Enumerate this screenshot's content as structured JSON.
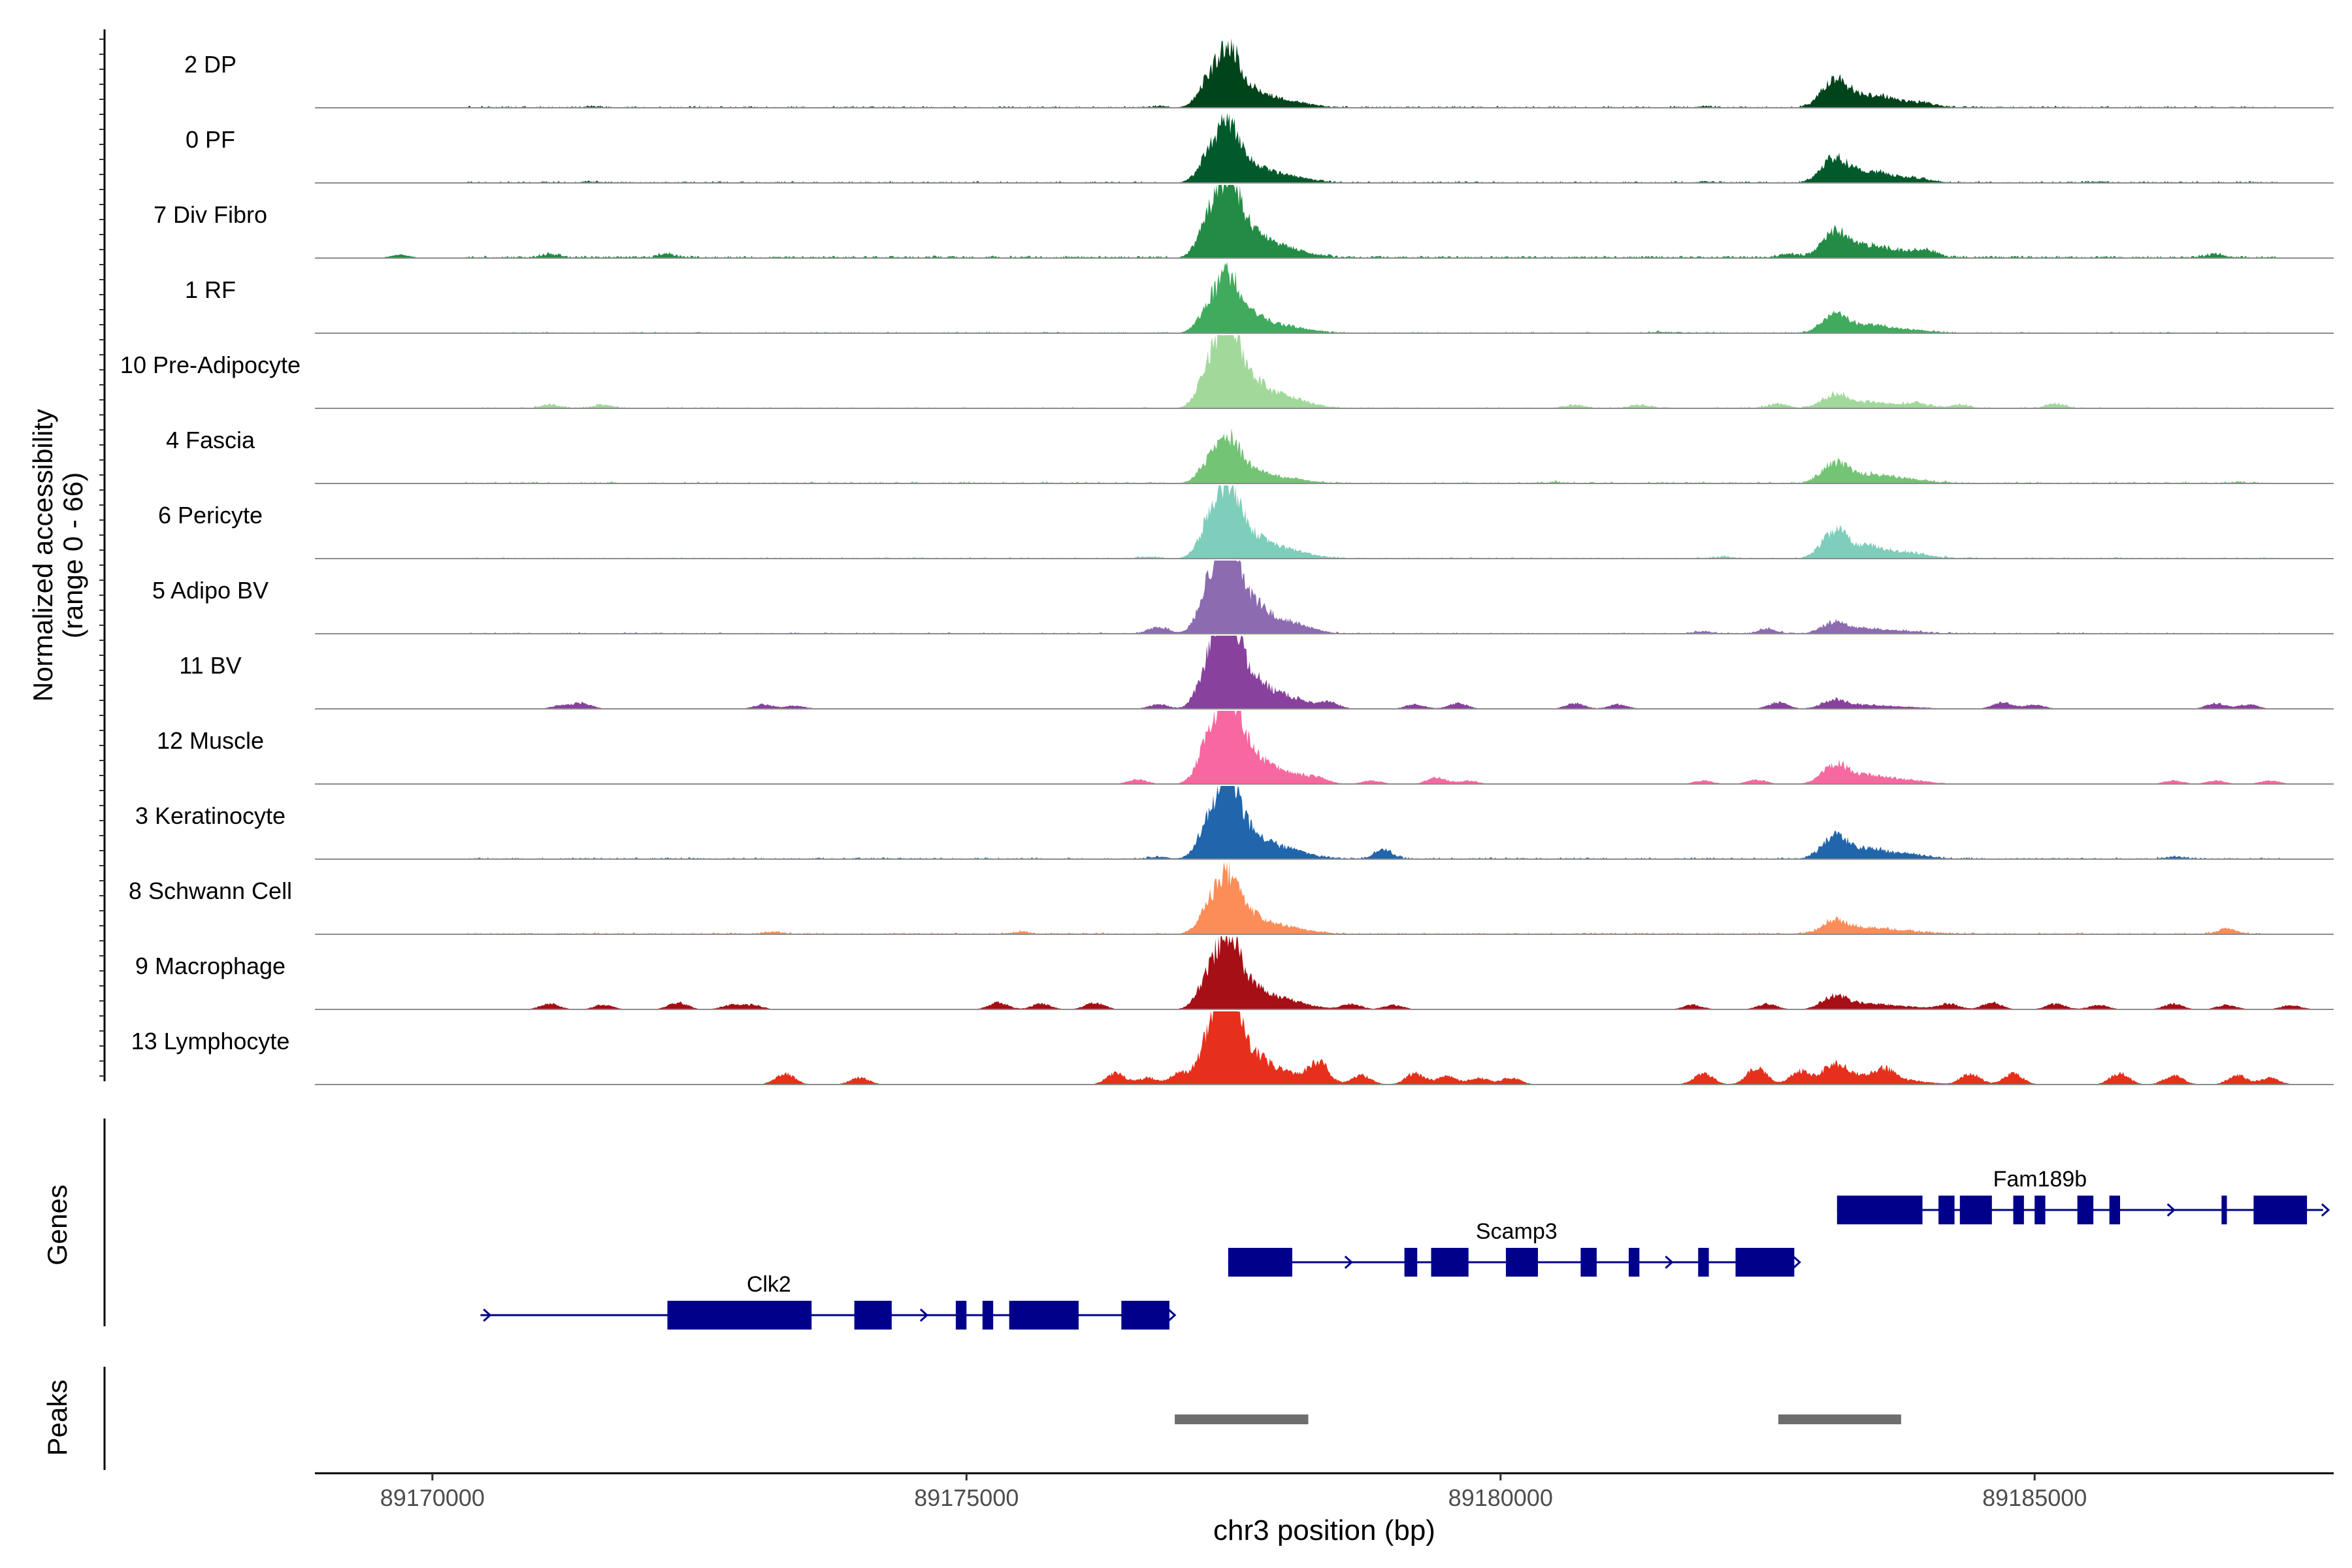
{
  "chart_data": {
    "type": "area",
    "title": "",
    "chromosome": "chr3",
    "xlabel": "chr3 position (bp)",
    "ylabel_line1": "Normalized accessibility",
    "ylabel_line2": "(range 0 - 66)",
    "ylim": [
      0,
      66
    ],
    "xlim": [
      89168900,
      89187800
    ],
    "xticks": [
      89170000,
      89175000,
      89180000,
      89185000
    ],
    "xtick_labels": [
      "89170000",
      "89175000",
      "89180000",
      "89185000"
    ],
    "genes_label": "Genes",
    "peaks_label": "Peaks",
    "tracks": [
      {
        "name": "2 DP",
        "color": "#00441b",
        "p1": 40,
        "p2": 25,
        "bg": 1.5,
        "scatter": 0.6,
        "extra": [
          [
            89171500,
            1.0
          ],
          [
            89176800,
            1.0
          ],
          [
            89181900,
            1.0
          ],
          [
            89184000,
            1.0
          ]
        ]
      },
      {
        "name": "0 PF",
        "color": "#005a2b",
        "p1": 40,
        "p2": 22,
        "bg": 1.5,
        "scatter": 0.6,
        "extra": [
          [
            89171500,
            1.0
          ],
          [
            89181900,
            1.0
          ],
          [
            89185600,
            1.0
          ]
        ]
      },
      {
        "name": "7 Div Fibro",
        "color": "#238b45",
        "p1": 56,
        "p2": 24,
        "bg": 2.0,
        "scatter": 0.8,
        "extra": [
          [
            89169700,
            3
          ],
          [
            89171100,
            3
          ],
          [
            89172200,
            3
          ],
          [
            89182700,
            3
          ],
          [
            89184000,
            4
          ],
          [
            89186700,
            3
          ]
        ]
      },
      {
        "name": "1 RF",
        "color": "#41ab5d",
        "p1": 38,
        "p2": 16,
        "bg": 1.2,
        "scatter": 0.6,
        "extra": [
          [
            89181500,
            1.0
          ]
        ]
      },
      {
        "name": "10 Pre-Adipocyte",
        "color": "#a1d99b",
        "p1": 60,
        "p2": 12,
        "bg": 1.2,
        "scatter": 0.5,
        "extra": [
          [
            89171100,
            3
          ],
          [
            89171600,
            3
          ],
          [
            89180700,
            3
          ],
          [
            89181300,
            3
          ],
          [
            89182600,
            4
          ],
          [
            89183900,
            3
          ],
          [
            89184300,
            3
          ],
          [
            89185200,
            4
          ]
        ]
      },
      {
        "name": "4 Fascia",
        "color": "#74c476",
        "p1": 30,
        "p2": 18,
        "bg": 1.5,
        "scatter": 0.6,
        "extra": [
          [
            89180500,
            1.0
          ],
          [
            89186900,
            1.0
          ]
        ]
      },
      {
        "name": "6 Pericyte",
        "color": "#7fcdbb",
        "p1": 50,
        "p2": 24,
        "bg": 1.2,
        "scatter": 0.6,
        "extra": [
          [
            89176700,
            1.5
          ],
          [
            89182100,
            1.5
          ]
        ]
      },
      {
        "name": "5 Adipo BV",
        "color": "#8c6bb1",
        "p1": 66,
        "p2": 10,
        "bg": 1.2,
        "scatter": 0.5,
        "extra": [
          [
            89176800,
            6
          ],
          [
            89182500,
            4
          ],
          [
            89181900,
            2
          ]
        ]
      },
      {
        "name": "11 BV",
        "color": "#88419d",
        "p1": 66,
        "p2": 8,
        "bg": 0,
        "scatter": 0,
        "extra": [
          [
            89171400,
            5
          ],
          [
            89171200,
            3
          ],
          [
            89173100,
            4
          ],
          [
            89173400,
            3
          ],
          [
            89176800,
            4
          ],
          [
            89178400,
            5
          ],
          [
            89179200,
            4
          ],
          [
            89179600,
            5
          ],
          [
            89180700,
            5
          ],
          [
            89181100,
            4
          ],
          [
            89182600,
            6
          ],
          [
            89184700,
            6
          ],
          [
            89185000,
            4
          ],
          [
            89186700,
            5
          ],
          [
            89187000,
            4
          ]
        ]
      },
      {
        "name": "12 Muscle",
        "color": "#f768a1",
        "p1": 64,
        "p2": 18,
        "bg": 0,
        "scatter": 0,
        "extra": [
          [
            89176600,
            4
          ],
          [
            89178300,
            3
          ],
          [
            89178800,
            3
          ],
          [
            89179400,
            6
          ],
          [
            89179700,
            3
          ],
          [
            89181900,
            3
          ],
          [
            89182400,
            4
          ],
          [
            89186300,
            3
          ],
          [
            89186700,
            3
          ],
          [
            89187200,
            3
          ]
        ]
      },
      {
        "name": "3 Keratinocyte",
        "color": "#2166ac",
        "p1": 56,
        "p2": 20,
        "bg": 1.5,
        "scatter": 0.6,
        "extra": [
          [
            89178900,
            8
          ],
          [
            89176800,
            2
          ],
          [
            89186300,
            2
          ]
        ]
      },
      {
        "name": "8 Schwann Cell",
        "color": "#fc8d59",
        "p1": 40,
        "p2": 12,
        "bg": 1.5,
        "scatter": 0.6,
        "extra": [
          [
            89173200,
            2
          ],
          [
            89175500,
            2
          ],
          [
            89186800,
            5
          ]
        ]
      },
      {
        "name": "9 Macrophage",
        "color": "#a50f15",
        "p1": 50,
        "p2": 12,
        "bg": 0,
        "scatter": 0,
        "extra": [
          [
            89171100,
            5
          ],
          [
            89171600,
            4
          ],
          [
            89172300,
            6
          ],
          [
            89172800,
            4
          ],
          [
            89173000,
            4
          ],
          [
            89175300,
            6
          ],
          [
            89175700,
            5
          ],
          [
            89176200,
            6
          ],
          [
            89178600,
            5
          ],
          [
            89179000,
            4
          ],
          [
            89181800,
            4
          ],
          [
            89182500,
            5
          ],
          [
            89184200,
            5
          ],
          [
            89184600,
            6
          ],
          [
            89185200,
            5
          ],
          [
            89185600,
            4
          ],
          [
            89186300,
            5
          ],
          [
            89186800,
            4
          ],
          [
            89187400,
            4
          ]
        ]
      },
      {
        "name": "13 Lymphocyte",
        "color": "#e6301c",
        "p1": 66,
        "p2": 18,
        "bg": 0,
        "scatter": 0,
        "extra": [
          [
            89173300,
            10
          ],
          [
            89174000,
            6
          ],
          [
            89176400,
            10
          ],
          [
            89176700,
            6
          ],
          [
            89177000,
            10
          ],
          [
            89178300,
            18
          ],
          [
            89178700,
            8
          ],
          [
            89179200,
            10
          ],
          [
            89179500,
            8
          ],
          [
            89179800,
            6
          ],
          [
            89180100,
            6
          ],
          [
            89181900,
            10
          ],
          [
            89182400,
            16
          ],
          [
            89182800,
            12
          ],
          [
            89183600,
            8
          ],
          [
            89184400,
            10
          ],
          [
            89184800,
            10
          ],
          [
            89185800,
            10
          ],
          [
            89186300,
            8
          ],
          [
            89186900,
            8
          ],
          [
            89187200,
            6
          ]
        ]
      }
    ],
    "genes": [
      {
        "name": "Clk2",
        "row": 3,
        "strand": "+",
        "start": 89170450,
        "end": 89176900,
        "label_x": 89173150,
        "exons": [
          [
            89172200,
            89173550
          ],
          [
            89173950,
            89174300
          ],
          [
            89174900,
            89175000
          ],
          [
            89175150,
            89175250
          ],
          [
            89175400,
            89176050
          ],
          [
            89176450,
            89176900
          ]
        ]
      },
      {
        "name": "Scamp3",
        "row": 2,
        "strand": "+",
        "start": 89177450,
        "end": 89182750,
        "label_x": 89180150,
        "exons": [
          [
            89177450,
            89178050
          ],
          [
            89179100,
            89179220
          ],
          [
            89179350,
            89179700
          ],
          [
            89180050,
            89180350
          ],
          [
            89180750,
            89180900
          ],
          [
            89181200,
            89181300
          ],
          [
            89181850,
            89181950
          ],
          [
            89182200,
            89182750
          ]
        ]
      },
      {
        "name": "Fam189b",
        "row": 1,
        "strand": "+",
        "start": 89183150,
        "end": 89187700,
        "label_x": 89185050,
        "exons": [
          [
            89183150,
            89183950
          ],
          [
            89184100,
            89184250
          ],
          [
            89184300,
            89184600
          ],
          [
            89184800,
            89184900
          ],
          [
            89185000,
            89185100
          ],
          [
            89185400,
            89185550
          ],
          [
            89185700,
            89185800
          ],
          [
            89186750,
            89186800
          ],
          [
            89187050,
            89187550
          ]
        ]
      }
    ],
    "peaks": [
      [
        89176950,
        89178200
      ],
      [
        89182600,
        89183750
      ]
    ]
  }
}
